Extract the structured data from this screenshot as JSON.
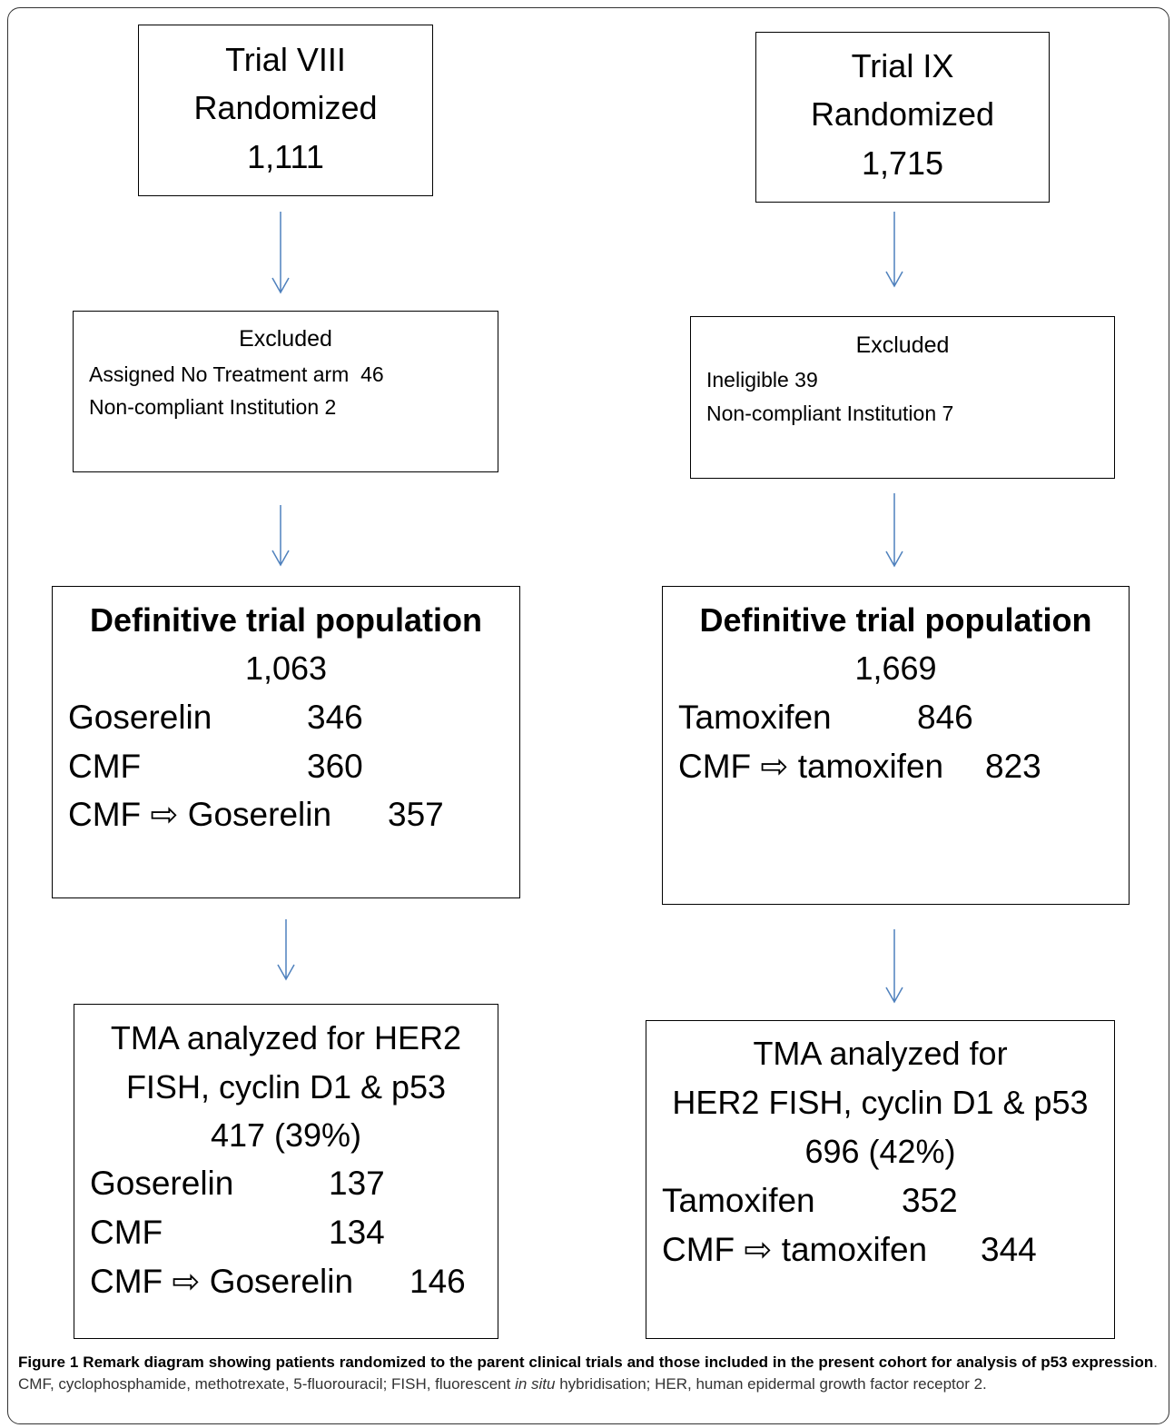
{
  "left": {
    "randomized": [
      "Trial VIII",
      "Randomized",
      "1,111"
    ],
    "excluded": {
      "title": "Excluded",
      "lines": [
        "Assigned No Treatment arm  46",
        "Non-compliant Institution 2"
      ]
    },
    "definitive": {
      "title": "Definitive trial population",
      "total": "1,063",
      "rows": [
        [
          "Goserelin",
          "346"
        ],
        [
          "CMF",
          "360"
        ],
        [
          "CMF ⇨ Goserelin",
          "357"
        ]
      ]
    },
    "tma": {
      "lines": [
        "TMA analyzed for HER2",
        "FISH, cyclin D1 & p53",
        "417 (39%)"
      ],
      "rows": [
        [
          "Goserelin",
          "137"
        ],
        [
          "CMF",
          "134"
        ],
        [
          "CMF ⇨ Goserelin",
          "146"
        ]
      ]
    }
  },
  "right": {
    "randomized": [
      "Trial IX",
      "Randomized",
      "1,715"
    ],
    "excluded": {
      "title": "Excluded",
      "lines": [
        "Ineligible 39",
        "Non-compliant Institution 7"
      ]
    },
    "definitive": {
      "title": "Definitive trial population",
      "total": "1,669",
      "rows": [
        [
          "Tamoxifen",
          "846"
        ],
        [
          "CMF ⇨ tamoxifen",
          "823"
        ]
      ]
    },
    "tma": {
      "lines": [
        "TMA analyzed for",
        "HER2 FISH, cyclin D1 & p53",
        "696 (42%)"
      ],
      "rows": [
        [
          "Tamoxifen",
          "352"
        ],
        [
          "CMF ⇨ tamoxifen",
          "344"
        ]
      ]
    }
  },
  "caption": {
    "label": "Figure 1",
    "title": " Remark diagram showing patients randomized to the parent clinical trials and those included in the present cohort for analysis of p53 expression",
    "text": ". CMF, cyclophosphamide, methotrexate, 5-fluorouracil; FISH, fluorescent ",
    "italic": "in situ",
    "text_end": " hybridisation; HER, human epidermal growth factor receptor 2."
  }
}
